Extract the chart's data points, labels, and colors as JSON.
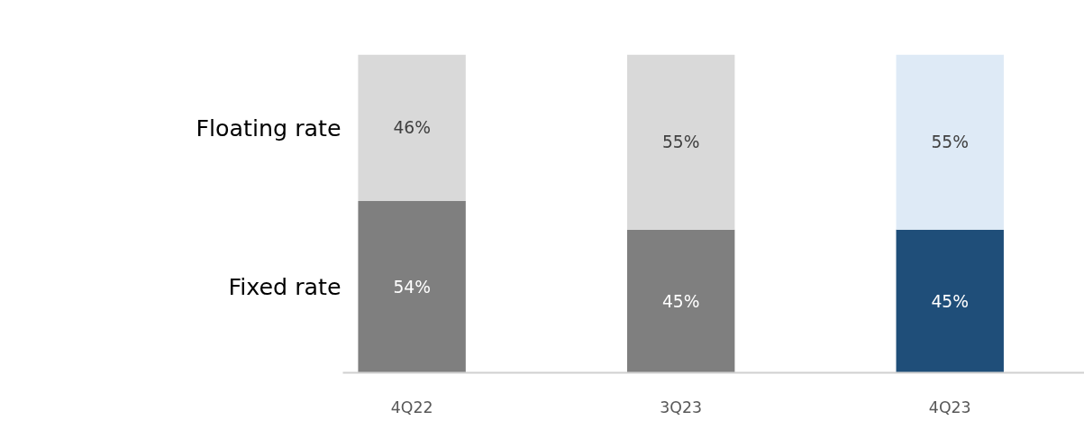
{
  "chart_data": {
    "type": "bar",
    "stacked": true,
    "grid": false,
    "categories": [
      "4Q22",
      "3Q23",
      "4Q23"
    ],
    "series": [
      {
        "name": "Fixed rate",
        "colors": [
          "#7f7f7f",
          "#7f7f7f",
          "#1f4e79"
        ],
        "values": [
          54,
          45,
          45
        ],
        "value_labels": [
          "54%",
          "45%",
          "45%"
        ]
      },
      {
        "name": "Floating rate",
        "colors": [
          "#d9d9d9",
          "#d9d9d9",
          "#deeaf6"
        ],
        "values": [
          46,
          55,
          55
        ],
        "value_labels": [
          "46%",
          "55%",
          "55%"
        ]
      }
    ]
  }
}
